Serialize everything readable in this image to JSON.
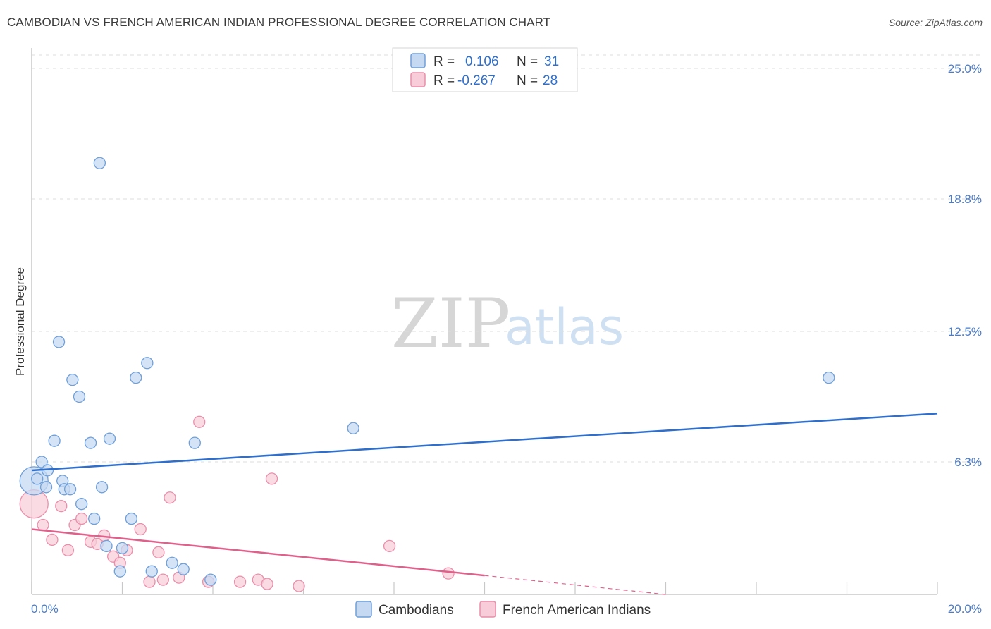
{
  "title": "CAMBODIAN VS FRENCH AMERICAN INDIAN PROFESSIONAL DEGREE CORRELATION CHART",
  "source": "Source: ZipAtlas.com",
  "watermark": {
    "zip": "ZIP",
    "atlas": "atlas"
  },
  "colors": {
    "blue_fill": "#c5d9f3",
    "blue_stroke": "#6f9fd8",
    "blue_line": "#2f6fcc",
    "pink_fill": "#f8cdd9",
    "pink_stroke": "#e98fab",
    "pink_line": "#e0608c",
    "tick_text": "#4a7cc9",
    "grid": "#dcdcdc"
  },
  "legend": {
    "rows": [
      {
        "r_label": "R =",
        "r_value": "0.106",
        "n_label": "N =",
        "n_value": "31"
      },
      {
        "r_label": "R =",
        "r_value": "-0.267",
        "n_label": "N =",
        "n_value": "28"
      }
    ]
  },
  "chart_data": {
    "type": "scatter",
    "title": "CAMBODIAN VS FRENCH AMERICAN INDIAN PROFESSIONAL DEGREE CORRELATION CHART",
    "xlabel": "",
    "ylabel": "Professional Degree",
    "xlim": [
      0,
      20
    ],
    "ylim": [
      0,
      25
    ],
    "x_ticks": [
      "0.0%",
      "20.0%"
    ],
    "y_ticks": [
      {
        "value": 6.3,
        "label": "6.3%"
      },
      {
        "value": 12.5,
        "label": "12.5%"
      },
      {
        "value": 18.8,
        "label": "18.8%"
      },
      {
        "value": 25.0,
        "label": "25.0%"
      }
    ],
    "grid": true,
    "legend_position": "top-center",
    "series": [
      {
        "name": "Cambodians",
        "trend": {
          "x": [
            0,
            20
          ],
          "y": [
            5.9,
            8.6
          ]
        },
        "points": [
          {
            "x": 0.05,
            "y": 5.4,
            "big": true
          },
          {
            "x": 0.22,
            "y": 6.3
          },
          {
            "x": 0.35,
            "y": 5.9
          },
          {
            "x": 0.5,
            "y": 7.3
          },
          {
            "x": 0.32,
            "y": 5.1
          },
          {
            "x": 0.12,
            "y": 5.5
          },
          {
            "x": 0.6,
            "y": 12.0
          },
          {
            "x": 0.68,
            "y": 5.4
          },
          {
            "x": 0.72,
            "y": 5.0
          },
          {
            "x": 0.85,
            "y": 5.0
          },
          {
            "x": 0.9,
            "y": 10.2
          },
          {
            "x": 1.05,
            "y": 9.4
          },
          {
            "x": 1.1,
            "y": 4.3
          },
          {
            "x": 1.3,
            "y": 7.2
          },
          {
            "x": 1.38,
            "y": 3.6
          },
          {
            "x": 1.5,
            "y": 20.5
          },
          {
            "x": 1.55,
            "y": 5.1
          },
          {
            "x": 1.65,
            "y": 2.3
          },
          {
            "x": 1.72,
            "y": 7.4
          },
          {
            "x": 1.95,
            "y": 1.1
          },
          {
            "x": 2.0,
            "y": 2.2
          },
          {
            "x": 2.2,
            "y": 3.6
          },
          {
            "x": 2.3,
            "y": 10.3
          },
          {
            "x": 2.55,
            "y": 11.0
          },
          {
            "x": 2.65,
            "y": 1.1
          },
          {
            "x": 3.1,
            "y": 1.5
          },
          {
            "x": 3.35,
            "y": 1.2
          },
          {
            "x": 3.6,
            "y": 7.2
          },
          {
            "x": 3.95,
            "y": 0.7
          },
          {
            "x": 7.1,
            "y": 7.9
          },
          {
            "x": 17.6,
            "y": 10.3
          }
        ]
      },
      {
        "name": "French American Indians",
        "trend": {
          "x": [
            0,
            10
          ],
          "y": [
            3.1,
            0.9
          ]
        },
        "trend_dashed": {
          "x": [
            10,
            14
          ],
          "y": [
            0.9,
            0.0
          ]
        },
        "points": [
          {
            "x": 0.05,
            "y": 4.3,
            "big": true
          },
          {
            "x": 0.25,
            "y": 3.3
          },
          {
            "x": 0.45,
            "y": 2.6
          },
          {
            "x": 0.8,
            "y": 2.1
          },
          {
            "x": 0.65,
            "y": 4.2
          },
          {
            "x": 0.95,
            "y": 3.3
          },
          {
            "x": 1.1,
            "y": 3.6
          },
          {
            "x": 1.3,
            "y": 2.5
          },
          {
            "x": 1.45,
            "y": 2.4
          },
          {
            "x": 1.6,
            "y": 2.8
          },
          {
            "x": 1.8,
            "y": 1.8
          },
          {
            "x": 1.95,
            "y": 1.5
          },
          {
            "x": 2.1,
            "y": 2.1
          },
          {
            "x": 2.4,
            "y": 3.1
          },
          {
            "x": 2.6,
            "y": 0.6
          },
          {
            "x": 2.8,
            "y": 2.0
          },
          {
            "x": 2.9,
            "y": 0.7
          },
          {
            "x": 3.05,
            "y": 4.6
          },
          {
            "x": 3.25,
            "y": 0.8
          },
          {
            "x": 3.7,
            "y": 8.2
          },
          {
            "x": 3.9,
            "y": 0.6
          },
          {
            "x": 4.6,
            "y": 0.6
          },
          {
            "x": 5.0,
            "y": 0.7
          },
          {
            "x": 5.2,
            "y": 0.5
          },
          {
            "x": 5.3,
            "y": 5.5
          },
          {
            "x": 5.9,
            "y": 0.4
          },
          {
            "x": 7.9,
            "y": 2.3
          },
          {
            "x": 9.2,
            "y": 1.0
          }
        ]
      }
    ]
  }
}
